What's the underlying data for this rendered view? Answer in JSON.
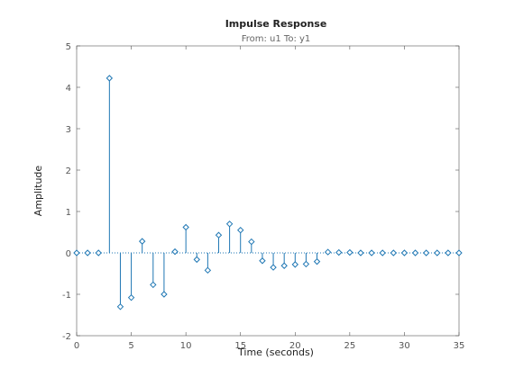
{
  "chart_data": {
    "type": "scatter",
    "style": "stem",
    "title": "Impulse Response",
    "subtitle": "From: u1  To: y1",
    "xlabel": "Time (seconds)",
    "ylabel": "Amplitude",
    "xlim": [
      0,
      35
    ],
    "ylim": [
      -2,
      5
    ],
    "xticks": [
      "0",
      "5",
      "10",
      "15",
      "20",
      "25",
      "30",
      "35"
    ],
    "yticks": [
      "-2",
      "-1",
      "0",
      "1",
      "2",
      "3",
      "4",
      "5"
    ],
    "grid": false,
    "baseline": 0,
    "colors": {
      "series": "#1f77b4",
      "axes": "#555555",
      "baseline": "#1f77b4"
    },
    "series": [
      {
        "x": [
          0,
          1,
          2,
          3,
          4,
          5,
          6,
          7,
          8,
          9,
          10,
          11,
          12,
          13,
          14,
          15,
          16,
          17,
          18,
          19,
          20,
          21,
          22,
          23,
          24,
          25,
          26,
          27,
          28,
          29,
          30,
          31,
          32,
          33,
          34,
          35
        ],
        "values": [
          0,
          0,
          0,
          4.22,
          -1.3,
          -1.08,
          0.28,
          -0.77,
          -1.0,
          0.03,
          0.62,
          -0.16,
          -0.42,
          0.43,
          0.7,
          0.55,
          0.27,
          -0.19,
          -0.35,
          -0.31,
          -0.28,
          -0.27,
          -0.21,
          0.02,
          0.01,
          0.01,
          0.0,
          0.0,
          0.0,
          0.0,
          0.0,
          0.0,
          0.0,
          0.0,
          0.0,
          0.0
        ]
      }
    ]
  }
}
